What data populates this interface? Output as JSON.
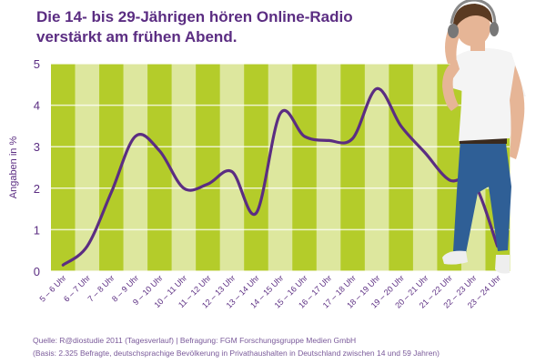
{
  "chart_data": {
    "type": "line",
    "title_line1": "Die 14- bis 29-Jährigen hören Online-Radio",
    "title_line2": "verstärkt am frühen Abend.",
    "ylabel": "Angaben in %",
    "ylim": [
      0,
      5
    ],
    "yticks": [
      "0",
      "1",
      "2",
      "3",
      "4",
      "5"
    ],
    "categories": [
      "5 – 6 Uhr",
      "6 – 7 Uhr",
      "7 – 8 Uhr",
      "8 – 9 Uhr",
      "9 – 10 Uhr",
      "10 – 11 Uhr",
      "11 – 12 Uhr",
      "12 – 13 Uhr",
      "13 – 14 Uhr",
      "14 – 15 Uhr",
      "15 – 16 Uhr",
      "16 – 17 Uhr",
      "17 – 18 Uhr",
      "18 – 19 Uhr",
      "19 – 20 Uhr",
      "20 – 21 Uhr",
      "21 – 22 Uhr",
      "22 – 23 Uhr",
      "23 – 24 Uhr"
    ],
    "series": [
      {
        "values": [
          0.15,
          0.6,
          1.9,
          3.25,
          2.9,
          2.0,
          2.1,
          2.4,
          1.4,
          3.8,
          3.25,
          3.15,
          3.2,
          4.4,
          3.5,
          2.85,
          2.2,
          2.15,
          0.6
        ]
      }
    ],
    "grid": true,
    "colors": {
      "band_dark": "#b4cc2a",
      "band_light": "#dde79e",
      "line": "#5b2d82",
      "text": "#5b2d82"
    }
  },
  "footer": {
    "source": "Quelle: R@diostudie 2011 (Tagesverlauf) | Befragung: FGM Forschungsgruppe Medien GmbH",
    "basis": "(Basis: 2.325 Befragte, deutschsprachige Bevölkerung in Privathaushalten in Deutschland zwischen 14 und 59 Jahren)"
  },
  "photo": {
    "subject": "young man with headphones",
    "colors": {
      "shirt": "#f4f4f4",
      "jeans": "#2f5f96",
      "hair": "#5a3a22",
      "skin": "#e6b596",
      "shoe": "#eeeeee"
    }
  }
}
